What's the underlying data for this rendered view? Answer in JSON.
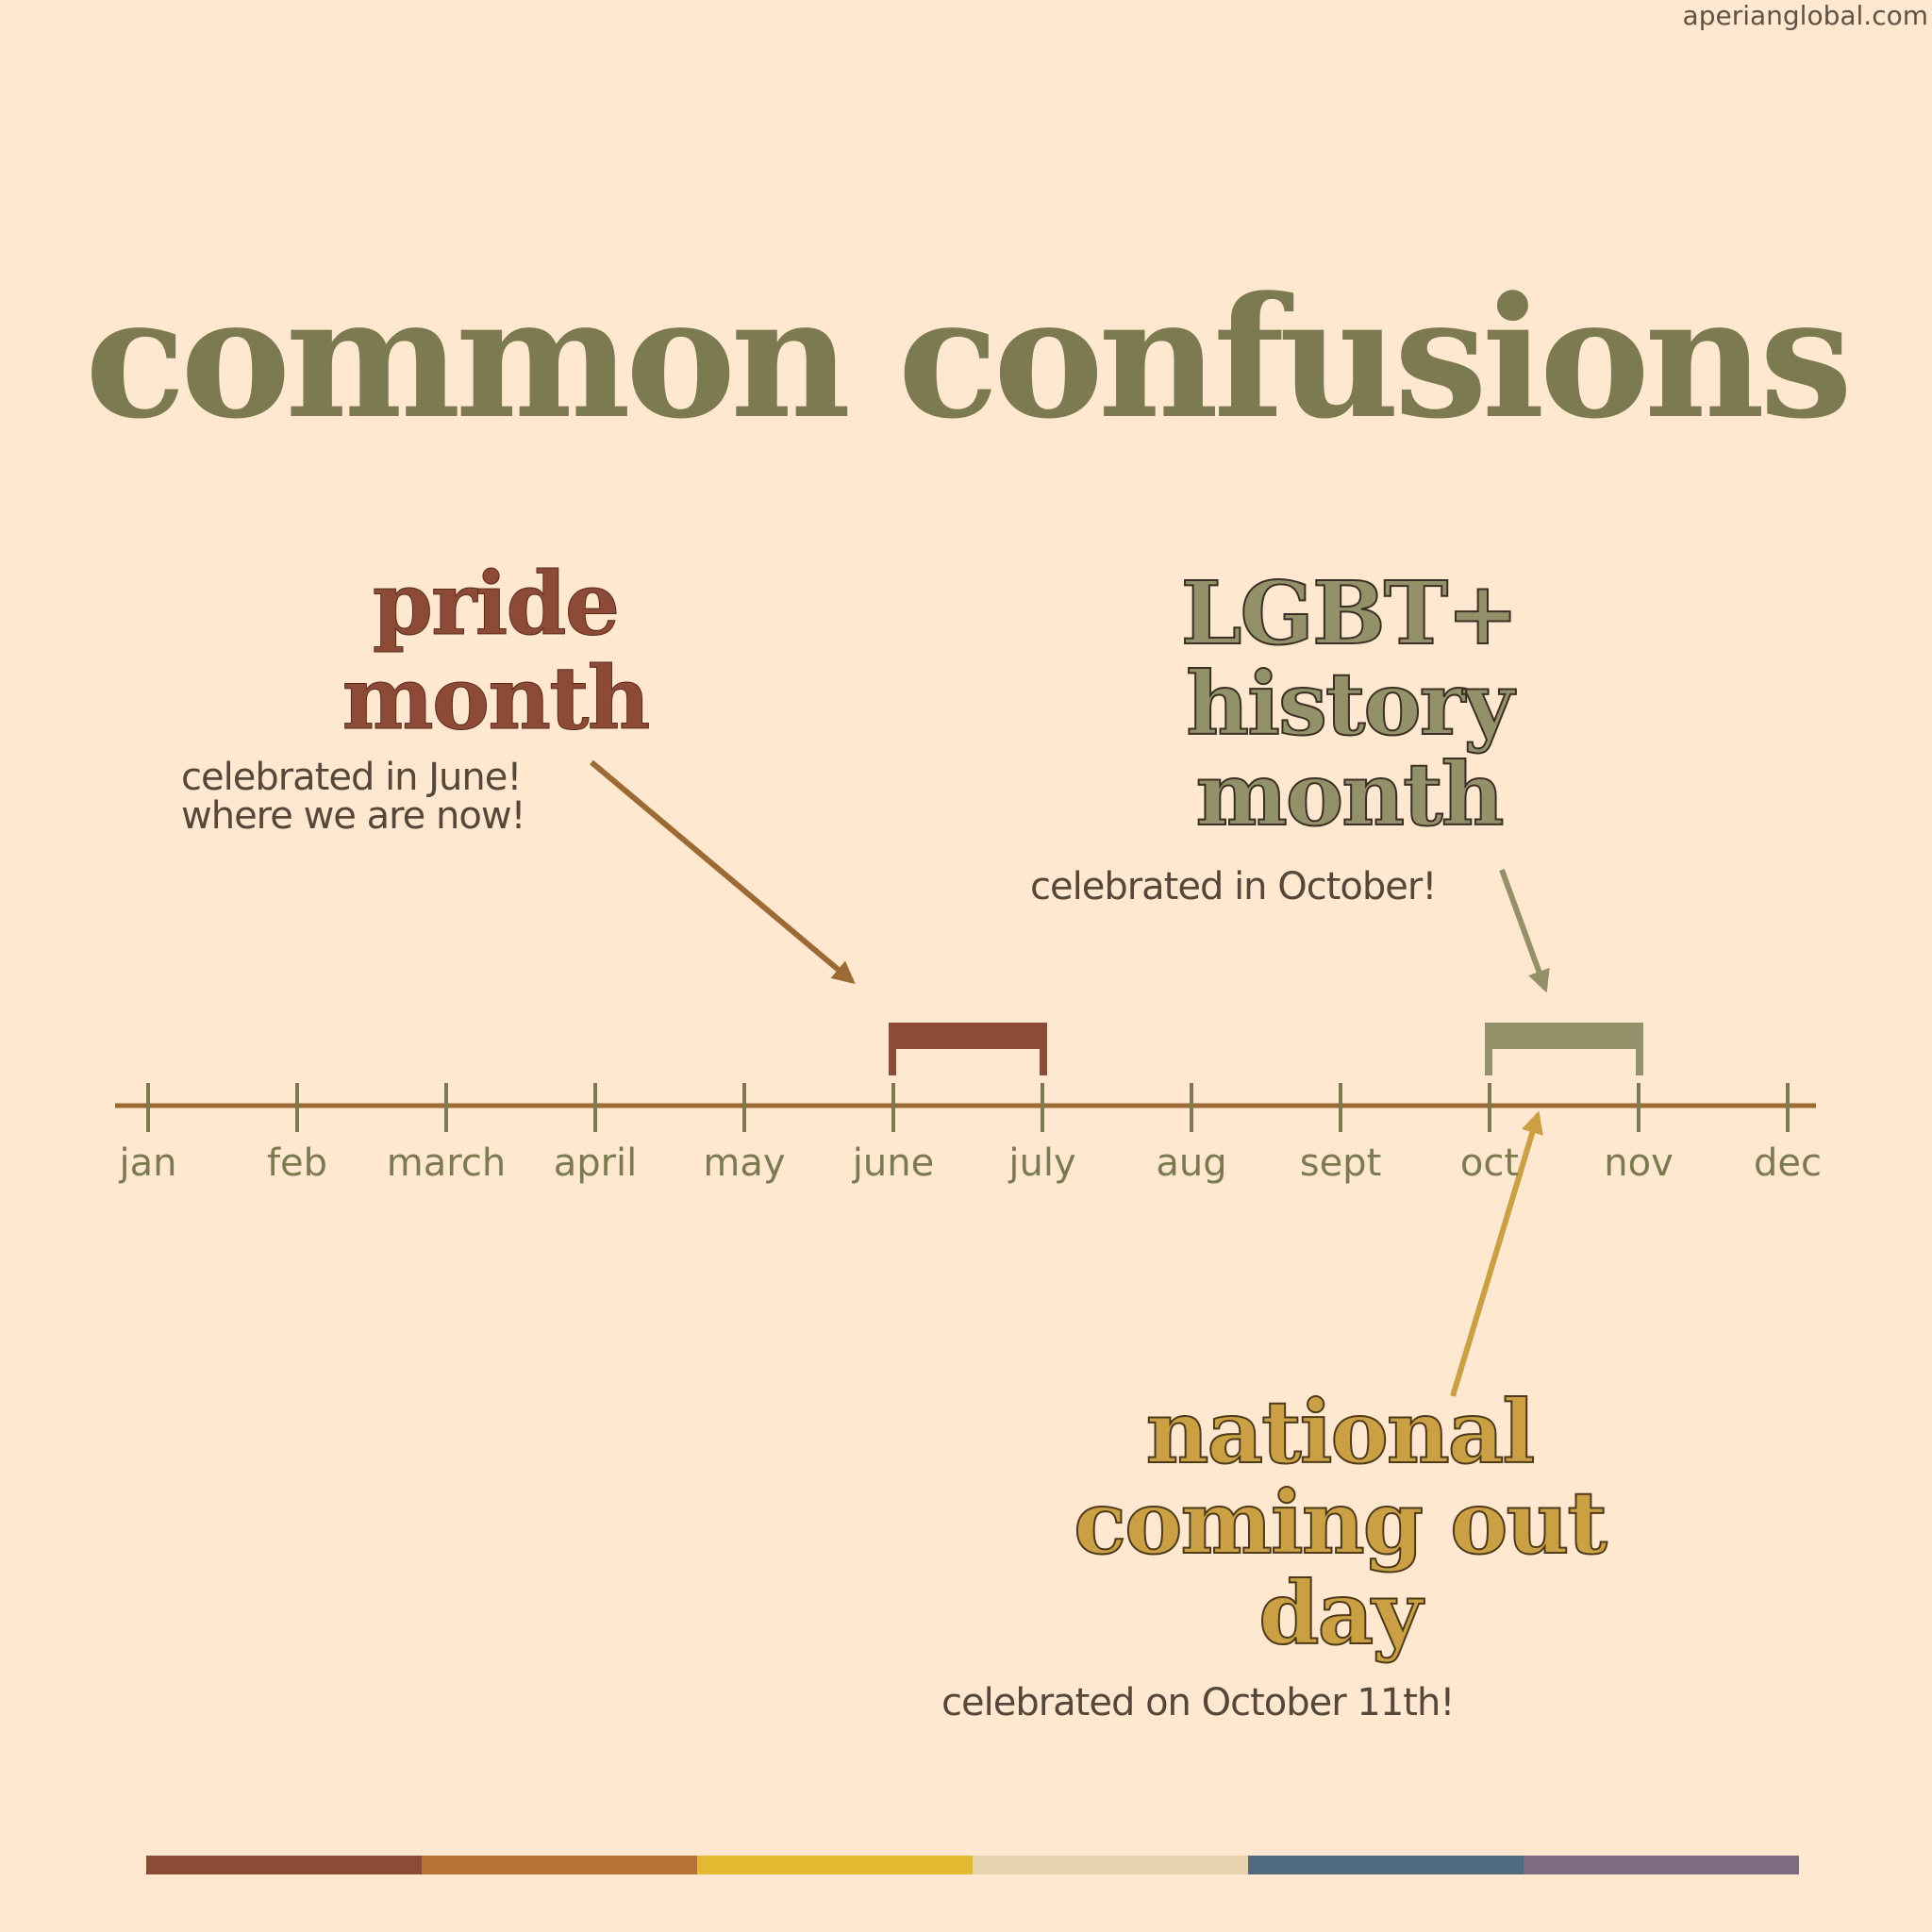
{
  "watermark": "aperianglobal.com",
  "title": "common confusions",
  "pride": {
    "title_lines": [
      "pride",
      "month"
    ],
    "subtitle_lines": [
      "celebrated in June!",
      "where we are now!"
    ],
    "color": "#8d4b37"
  },
  "lgbt": {
    "title_lines": [
      "LGBT+",
      "history",
      "month"
    ],
    "subtitle": "celebrated in October!",
    "color": "#939169"
  },
  "ncod": {
    "title_lines": [
      "national",
      "coming out",
      "day"
    ],
    "subtitle": "celebrated on October 11th!",
    "color": "#cba045"
  },
  "timeline": {
    "months": [
      "jan",
      "feb",
      "march",
      "april",
      "may",
      "june",
      "july",
      "aug",
      "sept",
      "oct",
      "nov",
      "dec"
    ],
    "line_color": "#9c6b35",
    "tick_color": "#7b7a51",
    "spans": [
      {
        "name": "pride month",
        "start_month": "june",
        "end_month": "july",
        "color": "#8d4b37"
      },
      {
        "name": "LGBT+ history month",
        "start_month": "oct",
        "end_month": "nov",
        "color": "#939169"
      }
    ],
    "marker": {
      "name": "national coming out day",
      "month": "oct",
      "day": 11
    }
  },
  "footer_colors": [
    "#8d4b37",
    "#b87238",
    "#e3b931",
    "#e8d4b0",
    "#506a80",
    "#7c6b83"
  ]
}
